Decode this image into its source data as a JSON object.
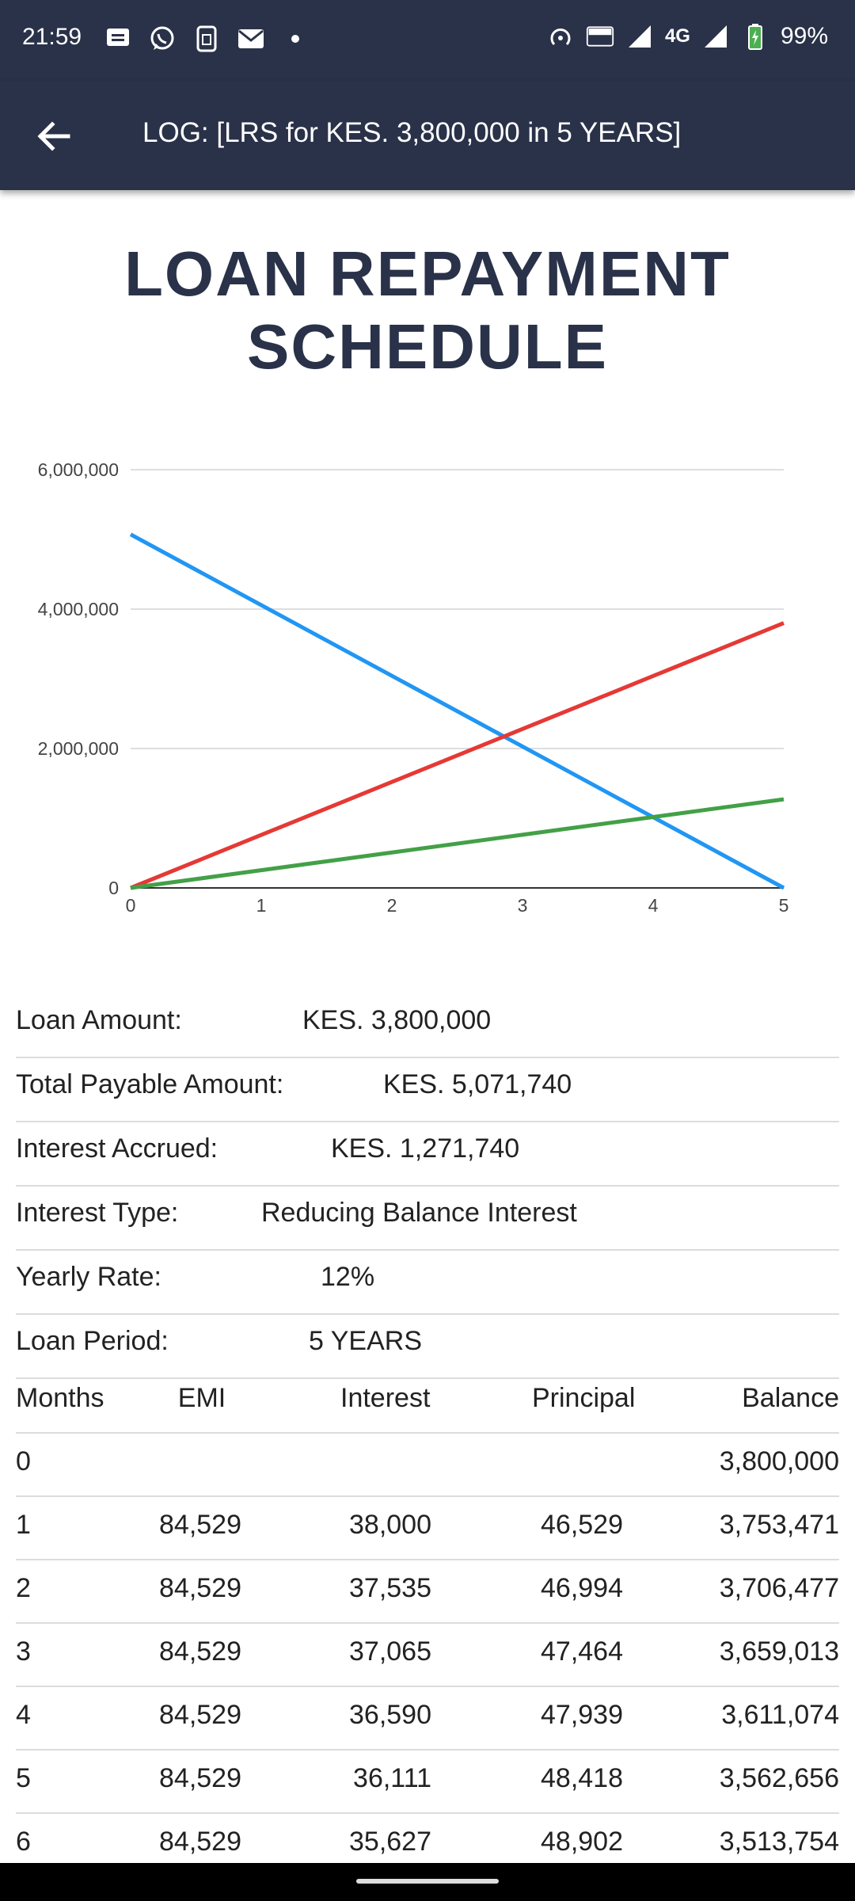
{
  "status_bar": {
    "time": "21:59",
    "battery": "99%",
    "network": "4G",
    "left_icons": [
      "message-icon",
      "whatsapp-icon",
      "sim-icon",
      "mail-icon",
      "dot-icon"
    ],
    "right_icons": [
      "hotspot-icon",
      "volte-icon",
      "signal-icon",
      "signal-icon",
      "battery-icon"
    ]
  },
  "app_bar": {
    "title": "LOG: [LRS for KES. 3,800,000 in 5 YEARS]",
    "back_icon": "arrow-left-icon"
  },
  "page": {
    "heading_line1": "LOAN REPAYMENT",
    "heading_line2": "SCHEDULE"
  },
  "chart_data": {
    "type": "line",
    "x": [
      0,
      1,
      2,
      3,
      4,
      5
    ],
    "xlim": [
      0,
      5
    ],
    "ylim": [
      0,
      6000000
    ],
    "y_ticks": [
      "0",
      "2,000,000",
      "4,000,000",
      "6,000,000"
    ],
    "x_ticks": [
      "0",
      "1",
      "2",
      "3",
      "4",
      "5"
    ],
    "grid": true,
    "series": [
      {
        "color": "#2196f3",
        "values": [
          5071740,
          4057392,
          3043044,
          2028696,
          1014348,
          0
        ]
      },
      {
        "color": "#e53935",
        "values": [
          0,
          760000,
          1520000,
          2280000,
          3040000,
          3800000
        ]
      },
      {
        "color": "#43a047",
        "values": [
          0,
          254348,
          508696,
          763044,
          1017392,
          1271740
        ]
      }
    ]
  },
  "summary": [
    {
      "label": "Loan Amount:",
      "value": "KES. 3,800,000"
    },
    {
      "label": "Total Payable Amount:",
      "value": "KES. 5,071,740"
    },
    {
      "label": "Interest Accrued:",
      "value": "KES. 1,271,740"
    },
    {
      "label": "Interest Type:",
      "value": "Reducing Balance Interest"
    },
    {
      "label": "Yearly Rate:",
      "value": "12%"
    },
    {
      "label": "Loan Period:",
      "value": "5 YEARS"
    }
  ],
  "table": {
    "headers": [
      "Months",
      "EMI",
      "Interest",
      "Principal",
      "Balance"
    ],
    "rows": [
      [
        "0",
        "",
        "",
        "",
        "3,800,000"
      ],
      [
        "1",
        "84,529",
        "38,000",
        "46,529",
        "3,753,471"
      ],
      [
        "2",
        "84,529",
        "37,535",
        "46,994",
        "3,706,477"
      ],
      [
        "3",
        "84,529",
        "37,065",
        "47,464",
        "3,659,013"
      ],
      [
        "4",
        "84,529",
        "36,590",
        "47,939",
        "3,611,074"
      ],
      [
        "5",
        "84,529",
        "36,111",
        "48,418",
        "3,562,656"
      ],
      [
        "6",
        "84,529",
        "35,627",
        "48,902",
        "3,513,754"
      ]
    ]
  }
}
